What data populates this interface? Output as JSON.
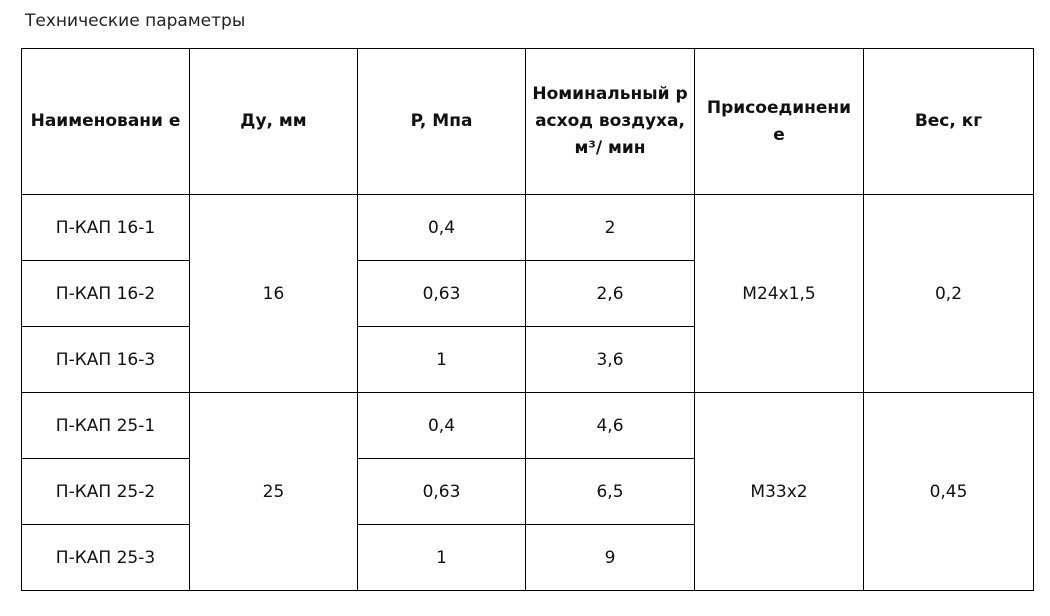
{
  "title": "Технические параметры",
  "table": {
    "headers": [
      "Наименовани е",
      "Ду, мм",
      "P, Мпа",
      "Номинальный расход воздуха, м³/ мин",
      "Присоединени е",
      "Вес, кг"
    ],
    "groups": [
      {
        "du": "16",
        "connection": "М24х1,5",
        "weight": "0,2",
        "rows": [
          {
            "name": "П-КАП 16-1",
            "pressure": "0,4",
            "flow": "2"
          },
          {
            "name": "П-КАП 16-2",
            "pressure": "0,63",
            "flow": "2,6"
          },
          {
            "name": "П-КАП 16-3",
            "pressure": "1",
            "flow": "3,6"
          }
        ]
      },
      {
        "du": "25",
        "connection": "М33х2",
        "weight": "0,45",
        "rows": [
          {
            "name": "П-КАП 25-1",
            "pressure": "0,4",
            "flow": "4,6"
          },
          {
            "name": "П-КАП 25-2",
            "pressure": "0,63",
            "flow": "6,5"
          },
          {
            "name": "П-КАП 25-3",
            "pressure": "1",
            "flow": "9"
          }
        ]
      }
    ]
  }
}
